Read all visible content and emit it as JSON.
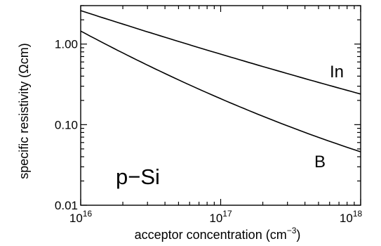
{
  "chart_data": {
    "type": "line",
    "title": "",
    "xlabel": "acceptor concentration (cm",
    "xlabel_exponent": "−3",
    "xlabel_close": ")",
    "ylabel": "specific resistivity (Ωcm)",
    "xscale": "log",
    "yscale": "log",
    "xlim": [
      1e+16,
      1e+18
    ],
    "ylim": [
      0.01,
      3
    ],
    "x_ticks": [
      {
        "value": 1e+16,
        "base": "10",
        "exp": "16"
      },
      {
        "value": 1e+17,
        "base": "10",
        "exp": "17"
      },
      {
        "value": 1e+18,
        "base": "10",
        "exp": "18"
      }
    ],
    "y_ticks": [
      {
        "value": 0.01,
        "label": "0.01"
      },
      {
        "value": 0.1,
        "label": "0.10"
      },
      {
        "value": 1.0,
        "label": "1.00"
      }
    ],
    "grid": false,
    "legend": "none",
    "series": [
      {
        "name": "In",
        "x": [
          1e+16,
          1e+17,
          1e+18
        ],
        "y": [
          2.6,
          0.75,
          0.24
        ]
      },
      {
        "name": "B",
        "x": [
          1e+16,
          1e+17,
          1e+18
        ],
        "y": [
          1.45,
          0.21,
          0.046
        ]
      }
    ],
    "annotations": [
      {
        "text": "p−Si"
      }
    ]
  }
}
